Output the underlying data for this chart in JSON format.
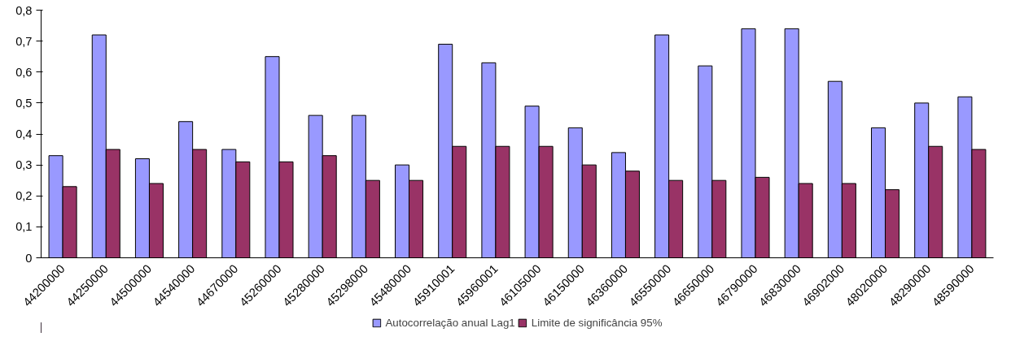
{
  "chart_data": {
    "type": "bar",
    "categories": [
      "44200000",
      "44250000",
      "44500000",
      "44540000",
      "44670000",
      "45260000",
      "45280000",
      "45298000",
      "45480000",
      "45910001",
      "45960001",
      "46105000",
      "46150000",
      "46360000",
      "46550000",
      "46650000",
      "46790000",
      "46830000",
      "46902000",
      "48020000",
      "48290000",
      "48590000"
    ],
    "series": [
      {
        "name": "Autocorrelação anual Lag1",
        "color": "#9999ff",
        "values": [
          0.33,
          0.72,
          0.32,
          0.44,
          0.35,
          0.65,
          0.46,
          0.46,
          0.3,
          0.69,
          0.63,
          0.49,
          0.42,
          0.34,
          0.72,
          0.62,
          0.74,
          0.74,
          0.57,
          0.42,
          0.5,
          0.52
        ]
      },
      {
        "name": "Limite de significância 95%",
        "color": "#993366",
        "values": [
          0.23,
          0.35,
          0.24,
          0.35,
          0.31,
          0.31,
          0.33,
          0.25,
          0.25,
          0.36,
          0.36,
          0.36,
          0.3,
          0.28,
          0.25,
          0.25,
          0.26,
          0.24,
          0.24,
          0.22,
          0.36,
          0.35
        ]
      }
    ],
    "ylim": [
      0,
      0.8
    ],
    "yticks": [
      {
        "value": 0,
        "label": "0"
      },
      {
        "value": 0.1,
        "label": "0,1"
      },
      {
        "value": 0.2,
        "label": "0,2"
      },
      {
        "value": 0.3,
        "label": "0,3"
      },
      {
        "value": 0.4,
        "label": "0,4"
      },
      {
        "value": 0.5,
        "label": "0,5"
      },
      {
        "value": 0.6,
        "label": "0,6"
      },
      {
        "value": 0.7,
        "label": "0,7"
      },
      {
        "value": 0.8,
        "label": "0,8"
      }
    ],
    "grid": false,
    "legend": "bottom"
  }
}
